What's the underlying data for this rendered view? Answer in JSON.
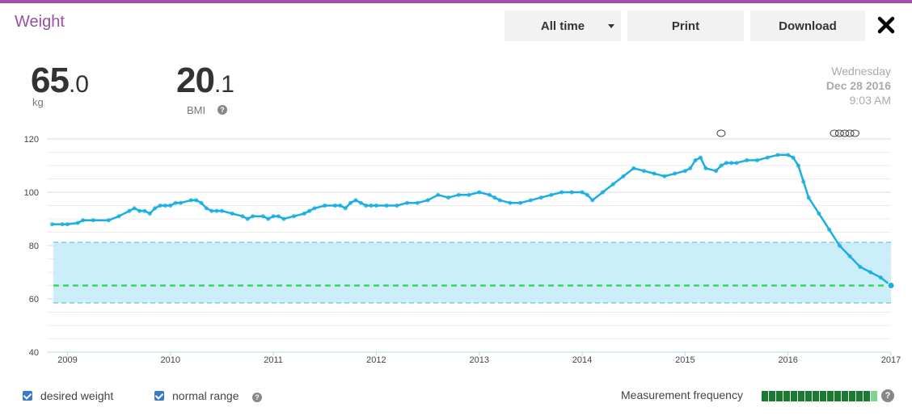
{
  "header": {
    "title": "Weight",
    "range_label": "All time",
    "print_label": "Print",
    "download_label": "Download"
  },
  "summary": {
    "weight_int": "65",
    "weight_frac": ".0",
    "weight_unit": "kg",
    "bmi_int": "20",
    "bmi_frac": ".1",
    "bmi_label": "BMI"
  },
  "date": {
    "weekday": "Wednesday",
    "date": "Dec 28 2016",
    "time": "9:03 AM"
  },
  "legend": {
    "desired_label": "desired weight",
    "normal_label": "normal range",
    "frequency_label": "Measurement frequency",
    "frequency_levels": [
      1,
      1,
      1,
      1,
      1,
      1,
      1,
      1,
      1,
      1,
      1,
      1,
      1,
      1,
      1,
      0.5
    ]
  },
  "colors": {
    "brand": "#a24fab",
    "line": "#1aaee3",
    "band": "#c6ecfa",
    "desired": "#3dd65a",
    "freq_dark": "#1b7a32",
    "freq_light": "#7fd48f"
  },
  "chart_data": {
    "type": "line",
    "title": "",
    "xlabel": "",
    "ylabel": "",
    "ylim": [
      40,
      120
    ],
    "yticks": [
      40,
      60,
      80,
      100,
      120
    ],
    "xlim": [
      2008.8,
      2017.0
    ],
    "xticks": [
      "2009",
      "2010",
      "2011",
      "2012",
      "2013",
      "2014",
      "2015",
      "2016",
      "2017"
    ],
    "grid": true,
    "normal_range": [
      58.5,
      81.2
    ],
    "desired_weight": 65.0,
    "series": [
      {
        "x": [
          2008.85,
          2008.95,
          2009.0,
          2009.1,
          2009.15,
          2009.25,
          2009.4,
          2009.5,
          2009.6,
          2009.65,
          2009.7,
          2009.75,
          2009.8,
          2009.85,
          2009.9,
          2009.95,
          2010.0,
          2010.05,
          2010.1,
          2010.2,
          2010.25,
          2010.3,
          2010.35,
          2010.4,
          2010.45,
          2010.5,
          2010.6,
          2010.7,
          2010.75,
          2010.8,
          2010.9,
          2010.95,
          2011.0,
          2011.05,
          2011.1,
          2011.2,
          2011.3,
          2011.35,
          2011.4,
          2011.5,
          2011.6,
          2011.65,
          2011.7,
          2011.75,
          2011.8,
          2011.85,
          2011.9,
          2011.95,
          2012.0,
          2012.1,
          2012.2,
          2012.3,
          2012.4,
          2012.5,
          2012.6,
          2012.7,
          2012.8,
          2012.9,
          2013.0,
          2013.1,
          2013.15,
          2013.2,
          2013.3,
          2013.4,
          2013.5,
          2013.6,
          2013.7,
          2013.8,
          2013.9,
          2014.0,
          2014.05,
          2014.1,
          2014.2,
          2014.3,
          2014.4,
          2014.5,
          2014.6,
          2014.7,
          2014.8,
          2014.9,
          2015.0,
          2015.05,
          2015.1,
          2015.15,
          2015.2,
          2015.3,
          2015.35,
          2015.4,
          2015.45,
          2015.5,
          2015.6,
          2015.7,
          2015.8,
          2015.9,
          2016.0,
          2016.05,
          2016.1,
          2016.15,
          2016.2,
          2016.3,
          2016.4,
          2016.5,
          2016.6,
          2016.7,
          2016.8,
          2016.9,
          2017.0
        ],
        "y": [
          88,
          88,
          88,
          88.5,
          89.5,
          89.5,
          89.5,
          91,
          93,
          94,
          93,
          93,
          92,
          94,
          95,
          95,
          95,
          96,
          96,
          97,
          97,
          96,
          94,
          93,
          93,
          93,
          92,
          91,
          90,
          91,
          91,
          90,
          91,
          91,
          90,
          91,
          92,
          93,
          94,
          95,
          95,
          95,
          94,
          96,
          97,
          96,
          95,
          95,
          95,
          95,
          95,
          96,
          96,
          97,
          99,
          98,
          99,
          99,
          100,
          99,
          98,
          97,
          96,
          96,
          97,
          98,
          99,
          100,
          100,
          100,
          99,
          97,
          100,
          103,
          106,
          109,
          108,
          107,
          106,
          107,
          108,
          109,
          112,
          113,
          109,
          108,
          110,
          111,
          111,
          111,
          112,
          112,
          113,
          114,
          114,
          113,
          110,
          104,
          98,
          92,
          86,
          80,
          76,
          72,
          70,
          68,
          65
        ]
      }
    ]
  }
}
